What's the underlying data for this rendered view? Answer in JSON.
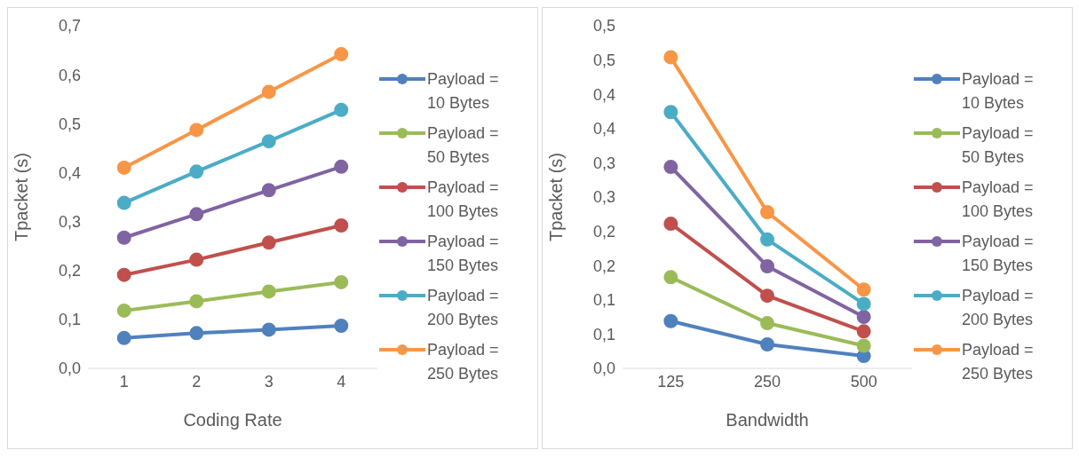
{
  "chart_data": [
    {
      "type": "line",
      "xlabel": "Coding Rate",
      "ylabel": "Tpacket (s)",
      "categories": [
        "1",
        "2",
        "3",
        "4"
      ],
      "marker": "circle",
      "legend": "right",
      "grid": false,
      "ylim": [
        0,
        0.7
      ],
      "yticks": [
        {
          "value": 0,
          "label": "0,0"
        },
        {
          "value": 0.1,
          "label": "0,1"
        },
        {
          "value": 0.2,
          "label": "0,2"
        },
        {
          "value": 0.3,
          "label": "0,3"
        },
        {
          "value": 0.4,
          "label": "0,4"
        },
        {
          "value": 0.5,
          "label": "0,5"
        },
        {
          "value": 0.6,
          "label": "0,6"
        },
        {
          "value": 0.7,
          "label": "0,7"
        }
      ],
      "series": [
        {
          "name": "Payload = 10 Bytes",
          "color": "#4f81bd",
          "values": [
            0.062,
            0.072,
            0.079,
            0.087
          ]
        },
        {
          "name": "Payload = 50 Bytes",
          "color": "#9bbb59",
          "values": [
            0.118,
            0.137,
            0.157,
            0.176
          ]
        },
        {
          "name": "Payload = 100 Bytes",
          "color": "#c0504d",
          "values": [
            0.191,
            0.222,
            0.257,
            0.292
          ]
        },
        {
          "name": "Payload = 150 Bytes",
          "color": "#8064a2",
          "values": [
            0.267,
            0.315,
            0.364,
            0.412
          ]
        },
        {
          "name": "Payload = 200 Bytes",
          "color": "#4bacc6",
          "values": [
            0.338,
            0.402,
            0.464,
            0.528
          ]
        },
        {
          "name": "Payload = 250 Bytes",
          "color": "#f79646",
          "values": [
            0.41,
            0.487,
            0.565,
            0.642
          ]
        }
      ]
    },
    {
      "type": "line",
      "xlabel": "Bandwidth",
      "ylabel": "Tpacket (s)",
      "categories": [
        "125",
        "250",
        "500"
      ],
      "marker": "circle",
      "legend": "right",
      "grid": false,
      "ylim": [
        0,
        0.5
      ],
      "yticks": [
        {
          "value": 0,
          "label": "0,0"
        },
        {
          "value": 0.05,
          "label": "0,1"
        },
        {
          "value": 0.1,
          "label": "0,1"
        },
        {
          "value": 0.15,
          "label": "0,2"
        },
        {
          "value": 0.2,
          "label": "0,2"
        },
        {
          "value": 0.25,
          "label": "0,3"
        },
        {
          "value": 0.3,
          "label": "0,3"
        },
        {
          "value": 0.35,
          "label": "0,4"
        },
        {
          "value": 0.4,
          "label": "0,4"
        },
        {
          "value": 0.45,
          "label": "0,5"
        },
        {
          "value": 0.5,
          "label": "0,5"
        }
      ],
      "series": [
        {
          "name": "Payload = 10 Bytes",
          "color": "#4f81bd",
          "values": [
            0.069,
            0.035,
            0.018
          ]
        },
        {
          "name": "Payload = 50 Bytes",
          "color": "#9bbb59",
          "values": [
            0.133,
            0.066,
            0.033
          ]
        },
        {
          "name": "Payload = 100 Bytes",
          "color": "#c0504d",
          "values": [
            0.211,
            0.106,
            0.054
          ]
        },
        {
          "name": "Payload = 150 Bytes",
          "color": "#8064a2",
          "values": [
            0.294,
            0.149,
            0.075
          ]
        },
        {
          "name": "Payload = 200 Bytes",
          "color": "#4bacc6",
          "values": [
            0.374,
            0.188,
            0.094
          ]
        },
        {
          "name": "Payload = 250 Bytes",
          "color": "#f79646",
          "values": [
            0.454,
            0.228,
            0.115
          ]
        }
      ]
    }
  ]
}
